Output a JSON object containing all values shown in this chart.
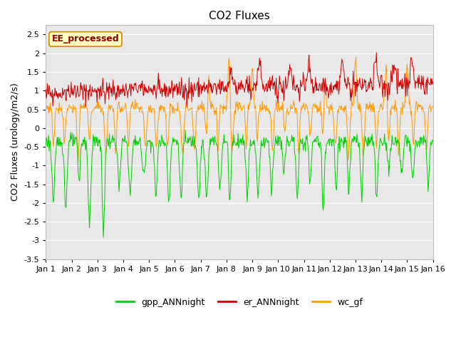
{
  "title": "CO2 Fluxes",
  "ylabel": "CO2 Fluxes (urology/m2/s)",
  "ylim": [
    -3.5,
    2.75
  ],
  "yticks": [
    -3.5,
    -3.0,
    -2.5,
    -2.0,
    -1.5,
    -1.0,
    -0.5,
    0.0,
    0.5,
    1.0,
    1.5,
    2.0,
    2.5
  ],
  "xlim": [
    0,
    15
  ],
  "xtick_positions": [
    0,
    1,
    2,
    3,
    4,
    5,
    6,
    7,
    8,
    9,
    10,
    11,
    12,
    13,
    14,
    15
  ],
  "xtick_labels": [
    "Jan 1",
    "Jan 2",
    "Jan 3",
    "Jan 4",
    "Jan 5",
    "Jan 6",
    "Jan 7",
    "Jan 8",
    "Jan 9",
    "Jan 10",
    "Jan 11",
    "Jan 12",
    "Jan 13",
    "Jan 14",
    "Jan 15",
    "Jan 16"
  ],
  "line_colors": {
    "gpp_ANNnight": "#00CC00",
    "er_ANNnight": "#CC0000",
    "wc_gf": "#FF9900"
  },
  "line_width": 0.7,
  "annotation_text": "EE_processed",
  "annotation_bg": "#FFFFC0",
  "annotation_border": "#CC8800",
  "annotation_text_color": "#8B0000",
  "bg_color": "#E8E8E8",
  "fig_color": "#FFFFFF",
  "legend_labels": [
    "gpp_ANNnight",
    "er_ANNnight",
    "wc_gf"
  ],
  "grid_color": "#FFFFFF",
  "title_fontsize": 11,
  "label_fontsize": 9,
  "tick_fontsize": 8
}
